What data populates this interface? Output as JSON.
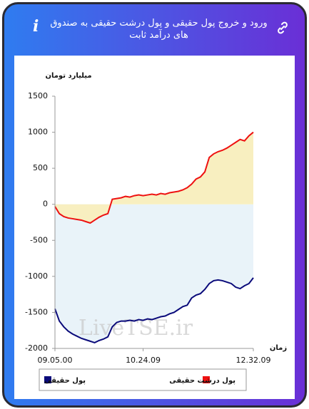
{
  "header": {
    "title": "ورود و خروج پول حقیقی و پول درشت حقیقی به صندوق های درآمد ثابت",
    "info_icon": "i"
  },
  "watermark": "LiveTSE.ir",
  "chart_data": {
    "type": "area",
    "y_axis_label": "میلیارد تومان",
    "x_axis_label": "زمان",
    "x": [
      0,
      1,
      2,
      3,
      4,
      5,
      6,
      7,
      8,
      9,
      10,
      11,
      12,
      13,
      14,
      15,
      16,
      17,
      18,
      19,
      20,
      21,
      22,
      23,
      24,
      25,
      26,
      27,
      28,
      29,
      30,
      31,
      32,
      33,
      34,
      35,
      36,
      37,
      38,
      39,
      40,
      41,
      42,
      43,
      44,
      45
    ],
    "xlim": [
      0,
      45
    ],
    "xticks": [
      {
        "value": 0,
        "label": "09.05.00"
      },
      {
        "value": 20,
        "label": "10.24.09"
      },
      {
        "value": 45,
        "label": "12.32.09"
      }
    ],
    "ylim": [
      -2000,
      1500
    ],
    "yticks": [
      -2000,
      -1500,
      -1000,
      -500,
      0,
      500,
      1000,
      1500
    ],
    "series": [
      {
        "name": "پول حقیقی",
        "color": "#0a0a7a",
        "fill": "#e9f3f9",
        "values": [
          -1450,
          -1620,
          -1700,
          -1760,
          -1800,
          -1830,
          -1860,
          -1880,
          -1900,
          -1920,
          -1890,
          -1870,
          -1840,
          -1700,
          -1640,
          -1620,
          -1620,
          -1610,
          -1620,
          -1600,
          -1610,
          -1590,
          -1600,
          -1580,
          -1560,
          -1550,
          -1520,
          -1500,
          -1460,
          -1420,
          -1400,
          -1300,
          -1260,
          -1240,
          -1180,
          -1100,
          -1060,
          -1050,
          -1060,
          -1080,
          -1100,
          -1150,
          -1170,
          -1130,
          -1100,
          -1020
        ]
      },
      {
        "name": "پول درشت حقیقی",
        "color": "#ee1111",
        "fill": "#f8efc0",
        "values": [
          -30,
          -130,
          -170,
          -190,
          -200,
          -210,
          -220,
          -240,
          -260,
          -220,
          -180,
          -150,
          -130,
          70,
          80,
          90,
          110,
          100,
          120,
          130,
          120,
          130,
          140,
          130,
          150,
          140,
          160,
          170,
          180,
          200,
          230,
          280,
          350,
          380,
          450,
          650,
          700,
          730,
          750,
          780,
          820,
          860,
          900,
          880,
          950,
          1000
        ]
      }
    ]
  }
}
